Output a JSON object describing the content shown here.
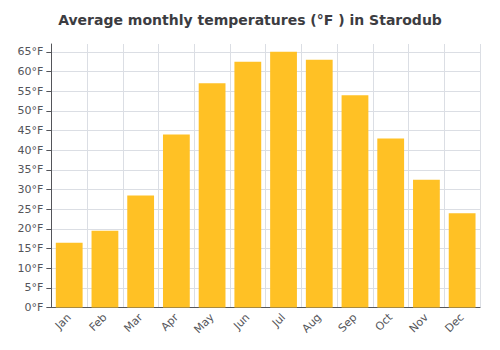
{
  "chart_data": {
    "type": "bar",
    "title": "Average monthly temperatures (°F ) in Starodub",
    "categories": [
      "Jan",
      "Feb",
      "Mar",
      "Apr",
      "May",
      "Jun",
      "Jul",
      "Aug",
      "Sep",
      "Oct",
      "Nov",
      "Dec"
    ],
    "values": [
      16.5,
      19.5,
      28.5,
      44.0,
      57.0,
      62.5,
      65.0,
      63.0,
      54.0,
      43.0,
      32.5,
      24.0
    ],
    "color": "#FFC125",
    "ylim": [
      0,
      67
    ],
    "yticks": [
      {
        "value": 0,
        "label": "0°F"
      },
      {
        "value": 5,
        "label": "5°F"
      },
      {
        "value": 10,
        "label": "10°F"
      },
      {
        "value": 15,
        "label": "15°F"
      },
      {
        "value": 20,
        "label": "20°F"
      },
      {
        "value": 25,
        "label": "25°F"
      },
      {
        "value": 30,
        "label": "30°F"
      },
      {
        "value": 35,
        "label": "35°F"
      },
      {
        "value": 40,
        "label": "40°F"
      },
      {
        "value": 45,
        "label": "45°F"
      },
      {
        "value": 50,
        "label": "50°F"
      },
      {
        "value": 55,
        "label": "55°F"
      },
      {
        "value": 60,
        "label": "60°F"
      },
      {
        "value": 65,
        "label": "65°F"
      }
    ],
    "grid": true
  }
}
